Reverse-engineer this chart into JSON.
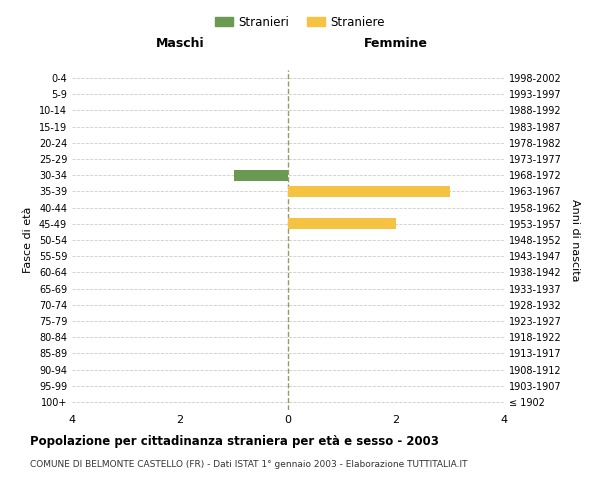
{
  "age_groups": [
    "100+",
    "95-99",
    "90-94",
    "85-89",
    "80-84",
    "75-79",
    "70-74",
    "65-69",
    "60-64",
    "55-59",
    "50-54",
    "45-49",
    "40-44",
    "35-39",
    "30-34",
    "25-29",
    "20-24",
    "15-19",
    "10-14",
    "5-9",
    "0-4"
  ],
  "birth_years": [
    "≤ 1902",
    "1903-1907",
    "1908-1912",
    "1913-1917",
    "1918-1922",
    "1923-1927",
    "1928-1932",
    "1933-1937",
    "1938-1942",
    "1943-1947",
    "1948-1952",
    "1953-1957",
    "1958-1962",
    "1963-1967",
    "1968-1972",
    "1973-1977",
    "1978-1982",
    "1983-1987",
    "1988-1992",
    "1993-1997",
    "1998-2002"
  ],
  "males": [
    0,
    0,
    0,
    0,
    0,
    0,
    0,
    0,
    0,
    0,
    0,
    0,
    0,
    0,
    1,
    0,
    0,
    0,
    0,
    0,
    0
  ],
  "females": [
    0,
    0,
    0,
    0,
    0,
    0,
    0,
    0,
    0,
    0,
    0,
    2,
    0,
    3,
    0,
    0,
    0,
    0,
    0,
    0,
    0
  ],
  "male_color": "#6a9a52",
  "female_color": "#f5c242",
  "male_label": "Stranieri",
  "female_label": "Straniere",
  "xlim": 4,
  "title": "Popolazione per cittadinanza straniera per età e sesso - 2003",
  "subtitle": "COMUNE DI BELMONTE CASTELLO (FR) - Dati ISTAT 1° gennaio 2003 - Elaborazione TUTTITALIA.IT",
  "ylabel_left": "Fasce di età",
  "ylabel_right": "Anni di nascita",
  "header_left": "Maschi",
  "header_right": "Femmine",
  "bg_color": "#ffffff",
  "grid_color": "#cccccc",
  "dashed_line_color": "#999966"
}
